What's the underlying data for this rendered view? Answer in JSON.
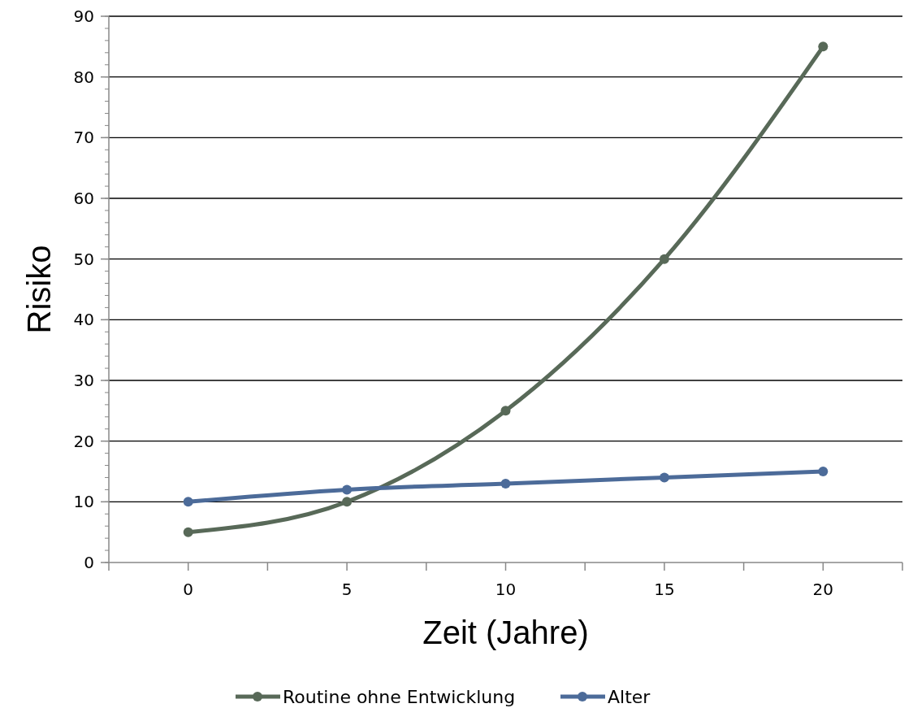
{
  "chart_data": {
    "type": "line",
    "xlabel": "Zeit (Jahre)",
    "ylabel": "Risiko",
    "x": [
      0,
      5,
      10,
      15,
      20
    ],
    "xlim": [
      -2.5,
      22.5
    ],
    "xticks": [
      {
        "value": -2.5,
        "label": null
      },
      0,
      {
        "value": 2.5,
        "label": null
      },
      5,
      {
        "value": 7.5,
        "label": null
      },
      10,
      {
        "value": 12.5,
        "label": null
      },
      15,
      {
        "value": 17.5,
        "label": null
      },
      20,
      {
        "value": 22.5,
        "label": null
      }
    ],
    "ylim": [
      0,
      90
    ],
    "yticks": [
      0,
      10,
      20,
      30,
      40,
      50,
      60,
      70,
      80,
      90
    ],
    "series": [
      {
        "name": "Routine ohne Entwicklung",
        "color": "#586958",
        "values": [
          5,
          10,
          25,
          50,
          85
        ]
      },
      {
        "name": "Alter",
        "color": "#4c6b99",
        "values": [
          10,
          12,
          13,
          14,
          15
        ]
      }
    ],
    "grid": "y",
    "legend": "bottom",
    "marker": "circle",
    "line_style": "solid"
  }
}
